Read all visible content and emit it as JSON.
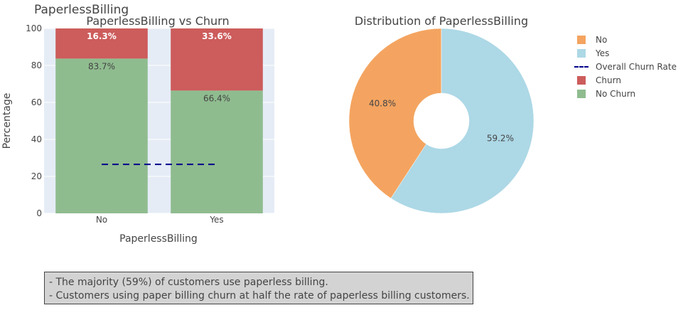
{
  "figure": {
    "title": "PaperlessBilling",
    "note_lines": [
      "- The majority (59%) of customers use paperless billing.",
      "- Customers using paper billing churn at half the rate of paperless billing customers."
    ]
  },
  "chart_data": [
    {
      "type": "bar",
      "stacked": true,
      "title": "PaperlessBilling vs Churn",
      "xlabel": "PaperlessBilling",
      "ylabel": "Percentage",
      "categories": [
        "No",
        "Yes"
      ],
      "ylim": [
        0,
        100
      ],
      "yticks": [
        0,
        20,
        40,
        60,
        80,
        100
      ],
      "series": [
        {
          "name": "No Churn",
          "values": [
            83.7,
            66.4
          ],
          "labels": [
            "83.7%",
            "66.4%"
          ],
          "color": "#8fbc8f"
        },
        {
          "name": "Churn",
          "values": [
            16.3,
            33.6
          ],
          "labels": [
            "16.3%",
            "33.6%"
          ],
          "color": "#cd5c5c"
        }
      ],
      "reference_line": {
        "name": "Overall Churn Rate",
        "value": 26.5,
        "color": "#00008b",
        "style": "dash"
      },
      "background": "#e5ecf6",
      "grid": true
    },
    {
      "type": "pie",
      "hole": true,
      "title": "Distribution of PaperlessBilling",
      "slices": [
        {
          "label": "No",
          "value": 40.8,
          "text": "40.8%",
          "color": "#f4a460"
        },
        {
          "label": "Yes",
          "value": 59.2,
          "text": "59.2%",
          "color": "#add8e6"
        }
      ]
    }
  ],
  "legend": {
    "position": "right",
    "items": [
      {
        "label": "No",
        "kind": "swatch",
        "color": "#f4a460"
      },
      {
        "label": "Yes",
        "kind": "swatch",
        "color": "#add8e6"
      },
      {
        "label": "Overall Churn Rate",
        "kind": "line",
        "color": "#00008b"
      },
      {
        "label": "Churn",
        "kind": "swatch",
        "color": "#cd5c5c"
      },
      {
        "label": "No Churn",
        "kind": "swatch",
        "color": "#8fbc8f"
      }
    ]
  }
}
